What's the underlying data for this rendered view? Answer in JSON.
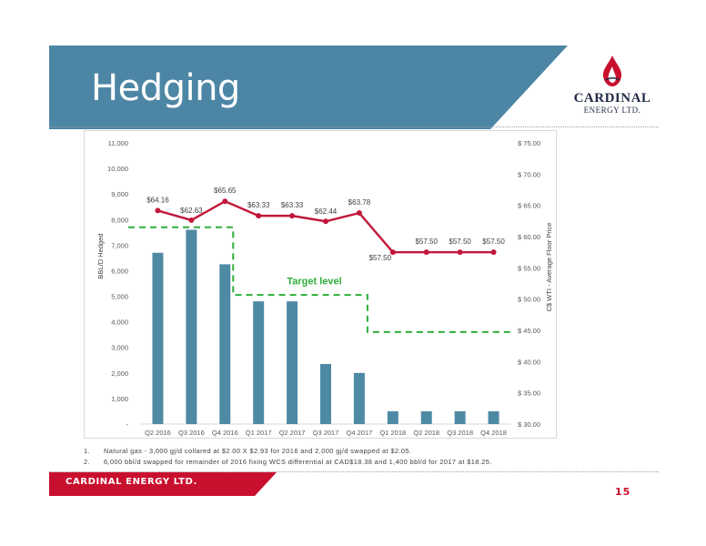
{
  "slide": {
    "title": "Hedging",
    "page_number": "15",
    "footer_text": "CARDINAL ENERGY LTD.",
    "colors": {
      "banner": "#4d86a5",
      "accent_red": "#c8102e",
      "bar": "#4f8aa5",
      "line": "#c0183a",
      "target": "#2eaf3a"
    }
  },
  "logo": {
    "icon": "flame-drop-icon",
    "name": "CARDINAL",
    "subtitle": "ENERGY LTD."
  },
  "footnotes": [
    {
      "num": "1.",
      "text": "Natural gas - 3,000 gj/d collared at $2.00 X $2.93 for 2016 and 2,000 gj/d swapped at $2.05."
    },
    {
      "num": "2.",
      "text": "6,000 bbl/d swapped for remainder of 2016 fixing WCS differential at CAD$18.38 and 1,400 bbl/d for 2017 at $18.25."
    }
  ],
  "chart_data": {
    "type": "bar",
    "categories": [
      "Q2 2016",
      "Q3 2016",
      "Q4 2016",
      "Q1 2017",
      "Q2 2017",
      "Q3 2017",
      "Q4 2017",
      "Q1 2018",
      "Q2 2018",
      "Q3 2018",
      "Q4 2018"
    ],
    "series": [
      {
        "type": "bar",
        "axis": "left",
        "values": [
          6700,
          7600,
          6250,
          4800,
          4800,
          2350,
          2000,
          500,
          500,
          500,
          500
        ]
      },
      {
        "type": "line",
        "axis": "right",
        "values": [
          64.16,
          62.63,
          65.65,
          63.33,
          63.33,
          62.44,
          63.78,
          57.5,
          57.5,
          57.5,
          57.5
        ],
        "labels": [
          "$64.16",
          "$62.63",
          "$65.65",
          "$63.33",
          "$63.33",
          "$62.44",
          "$63.78",
          "$57.50",
          "$57.50",
          "$57.50",
          "$57.50"
        ]
      }
    ],
    "target": {
      "label": "Target level",
      "steps": [
        {
          "from": "Q2 2016",
          "to": "Q4 2016",
          "value": 7700
        },
        {
          "from": "Q4 2016",
          "to": "Q4 2017",
          "value": 5050
        },
        {
          "from": "Q4 2017",
          "to": "Q4 2018",
          "value": 3600
        }
      ]
    },
    "ylabel": "BBL/D Hedged",
    "y2label": "C$ WTI - Average Floor Price",
    "ylim": [
      0,
      11000
    ],
    "y2lim": [
      30,
      75
    ],
    "yticks": [
      0,
      1000,
      2000,
      3000,
      4000,
      5000,
      6000,
      7000,
      8000,
      9000,
      10000,
      11000
    ],
    "ytick_labels": [
      "-",
      "1,000",
      "2,000",
      "3,000",
      "4,000",
      "5,000",
      "6,000",
      "7,000",
      "8,000",
      "9,000",
      "10,000",
      "11,000"
    ],
    "y2ticks": [
      30,
      35,
      40,
      45,
      50,
      55,
      60,
      65,
      70,
      75
    ],
    "y2tick_labels": [
      "$ 30.00",
      "$ 35.00",
      "$ 40.00",
      "$ 45.00",
      "$ 50.00",
      "$ 55.00",
      "$ 60.00",
      "$ 65.00",
      "$ 70.00",
      "$ 75.00"
    ],
    "grid": false,
    "legend": "none"
  }
}
